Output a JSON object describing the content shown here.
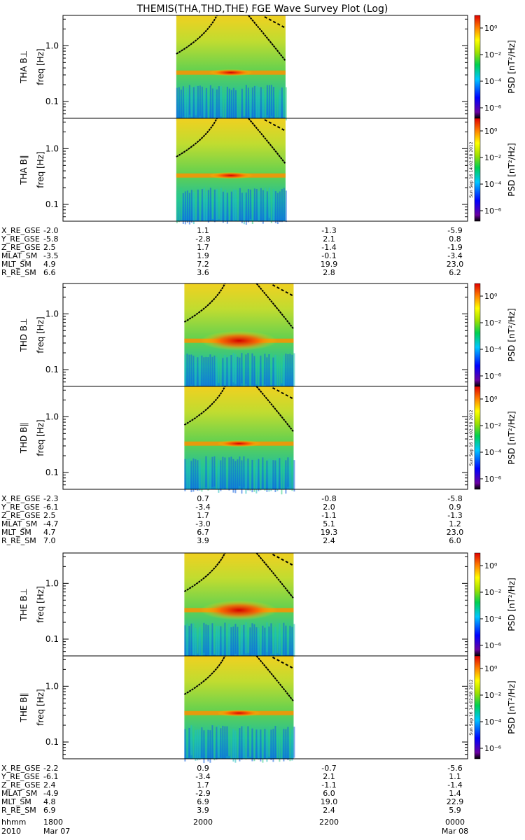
{
  "title": "THEMIS(THA,THD,THE) FGE Wave Survey Plot (Log)",
  "colorbar": {
    "label": "PSD [nT²/Hz]",
    "ticks": [
      "10⁰",
      "10⁻²",
      "10⁻⁴",
      "10⁻⁶"
    ],
    "stamp": "Sun Sep 16 14:02:58 2012"
  },
  "freq_ticks": [
    "1.0",
    "0.1"
  ],
  "freq_label": "freq [Hz]",
  "chart_data": {
    "type": "heatmap",
    "yscale": "log",
    "ylim_hz": [
      0.05,
      3.5
    ],
    "colorscale": "rainbow log PSD",
    "probes": [
      {
        "name": "THA",
        "panels": [
          {
            "label": "THA B⊥",
            "data_start": 0.28,
            "data_end": 0.55
          },
          {
            "label": "THA B∥",
            "data_start": 0.28,
            "data_end": 0.55
          }
        ],
        "ephemeris": [
          {
            "label": "X_RE_GSE",
            "values": [
              "-2.0",
              "1.1",
              "-1.3",
              "-5.9"
            ]
          },
          {
            "label": "Y_RE_GSE",
            "values": [
              "-5.8",
              "-2.8",
              "2.1",
              "0.8"
            ]
          },
          {
            "label": "Z_RE_GSE",
            "values": [
              "2.5",
              "1.7",
              "-1.4",
              "-1.9"
            ]
          },
          {
            "label": "MLAT_SM",
            "values": [
              "-3.5",
              "1.9",
              "-0.1",
              "-3.4"
            ]
          },
          {
            "label": "MLT_SM",
            "values": [
              "4.9",
              "7.2",
              "19.9",
              "23.0"
            ]
          },
          {
            "label": "R_RE_SM",
            "values": [
              "6.6",
              "3.6",
              "2.8",
              "6.2"
            ]
          }
        ]
      },
      {
        "name": "THD",
        "panels": [
          {
            "label": "THD B⊥",
            "data_start": 0.3,
            "data_end": 0.57
          },
          {
            "label": "THD B∥",
            "data_start": 0.3,
            "data_end": 0.57
          }
        ],
        "ephemeris": [
          {
            "label": "X_RE_GSE",
            "values": [
              "-2.3",
              "0.7",
              "-0.8",
              "-5.8"
            ]
          },
          {
            "label": "Y_RE_GSE",
            "values": [
              "-6.1",
              "-3.4",
              "2.0",
              "0.9"
            ]
          },
          {
            "label": "Z_RE_GSE",
            "values": [
              "2.5",
              "1.7",
              "-1.1",
              "-1.3"
            ]
          },
          {
            "label": "MLAT_SM",
            "values": [
              "-4.7",
              "-3.0",
              "5.1",
              "1.2"
            ]
          },
          {
            "label": "MLT_SM",
            "values": [
              "4.7",
              "6.7",
              "19.3",
              "23.0"
            ]
          },
          {
            "label": "R_RE_SM",
            "values": [
              "7.0",
              "3.9",
              "2.4",
              "6.0"
            ]
          }
        ]
      },
      {
        "name": "THE",
        "panels": [
          {
            "label": "THE B⊥",
            "data_start": 0.3,
            "data_end": 0.57
          },
          {
            "label": "THE B∥",
            "data_start": 0.3,
            "data_end": 0.57
          }
        ],
        "ephemeris": [
          {
            "label": "X_RE_GSE",
            "values": [
              "-2.2",
              "0.9",
              "-0.7",
              "-5.6"
            ]
          },
          {
            "label": "Y_RE_GSE",
            "values": [
              "-6.1",
              "-3.4",
              "2.1",
              "1.1"
            ]
          },
          {
            "label": "Z_RE_GSE",
            "values": [
              "2.4",
              "1.7",
              "-1.1",
              "-1.4"
            ]
          },
          {
            "label": "MLAT_SM",
            "values": [
              "-4.9",
              "-2.9",
              "6.0",
              "1.4"
            ]
          },
          {
            "label": "MLT_SM",
            "values": [
              "4.8",
              "6.9",
              "19.0",
              "22.9"
            ]
          },
          {
            "label": "R_RE_SM",
            "values": [
              "6.9",
              "3.9",
              "2.4",
              "5.9"
            ]
          }
        ]
      }
    ],
    "time_axis": {
      "label": "hhmm",
      "ticks": [
        "1800",
        "2000",
        "2200",
        "0000"
      ],
      "date_row": [
        "2010",
        "Mar 07",
        "Mar 08"
      ]
    }
  }
}
